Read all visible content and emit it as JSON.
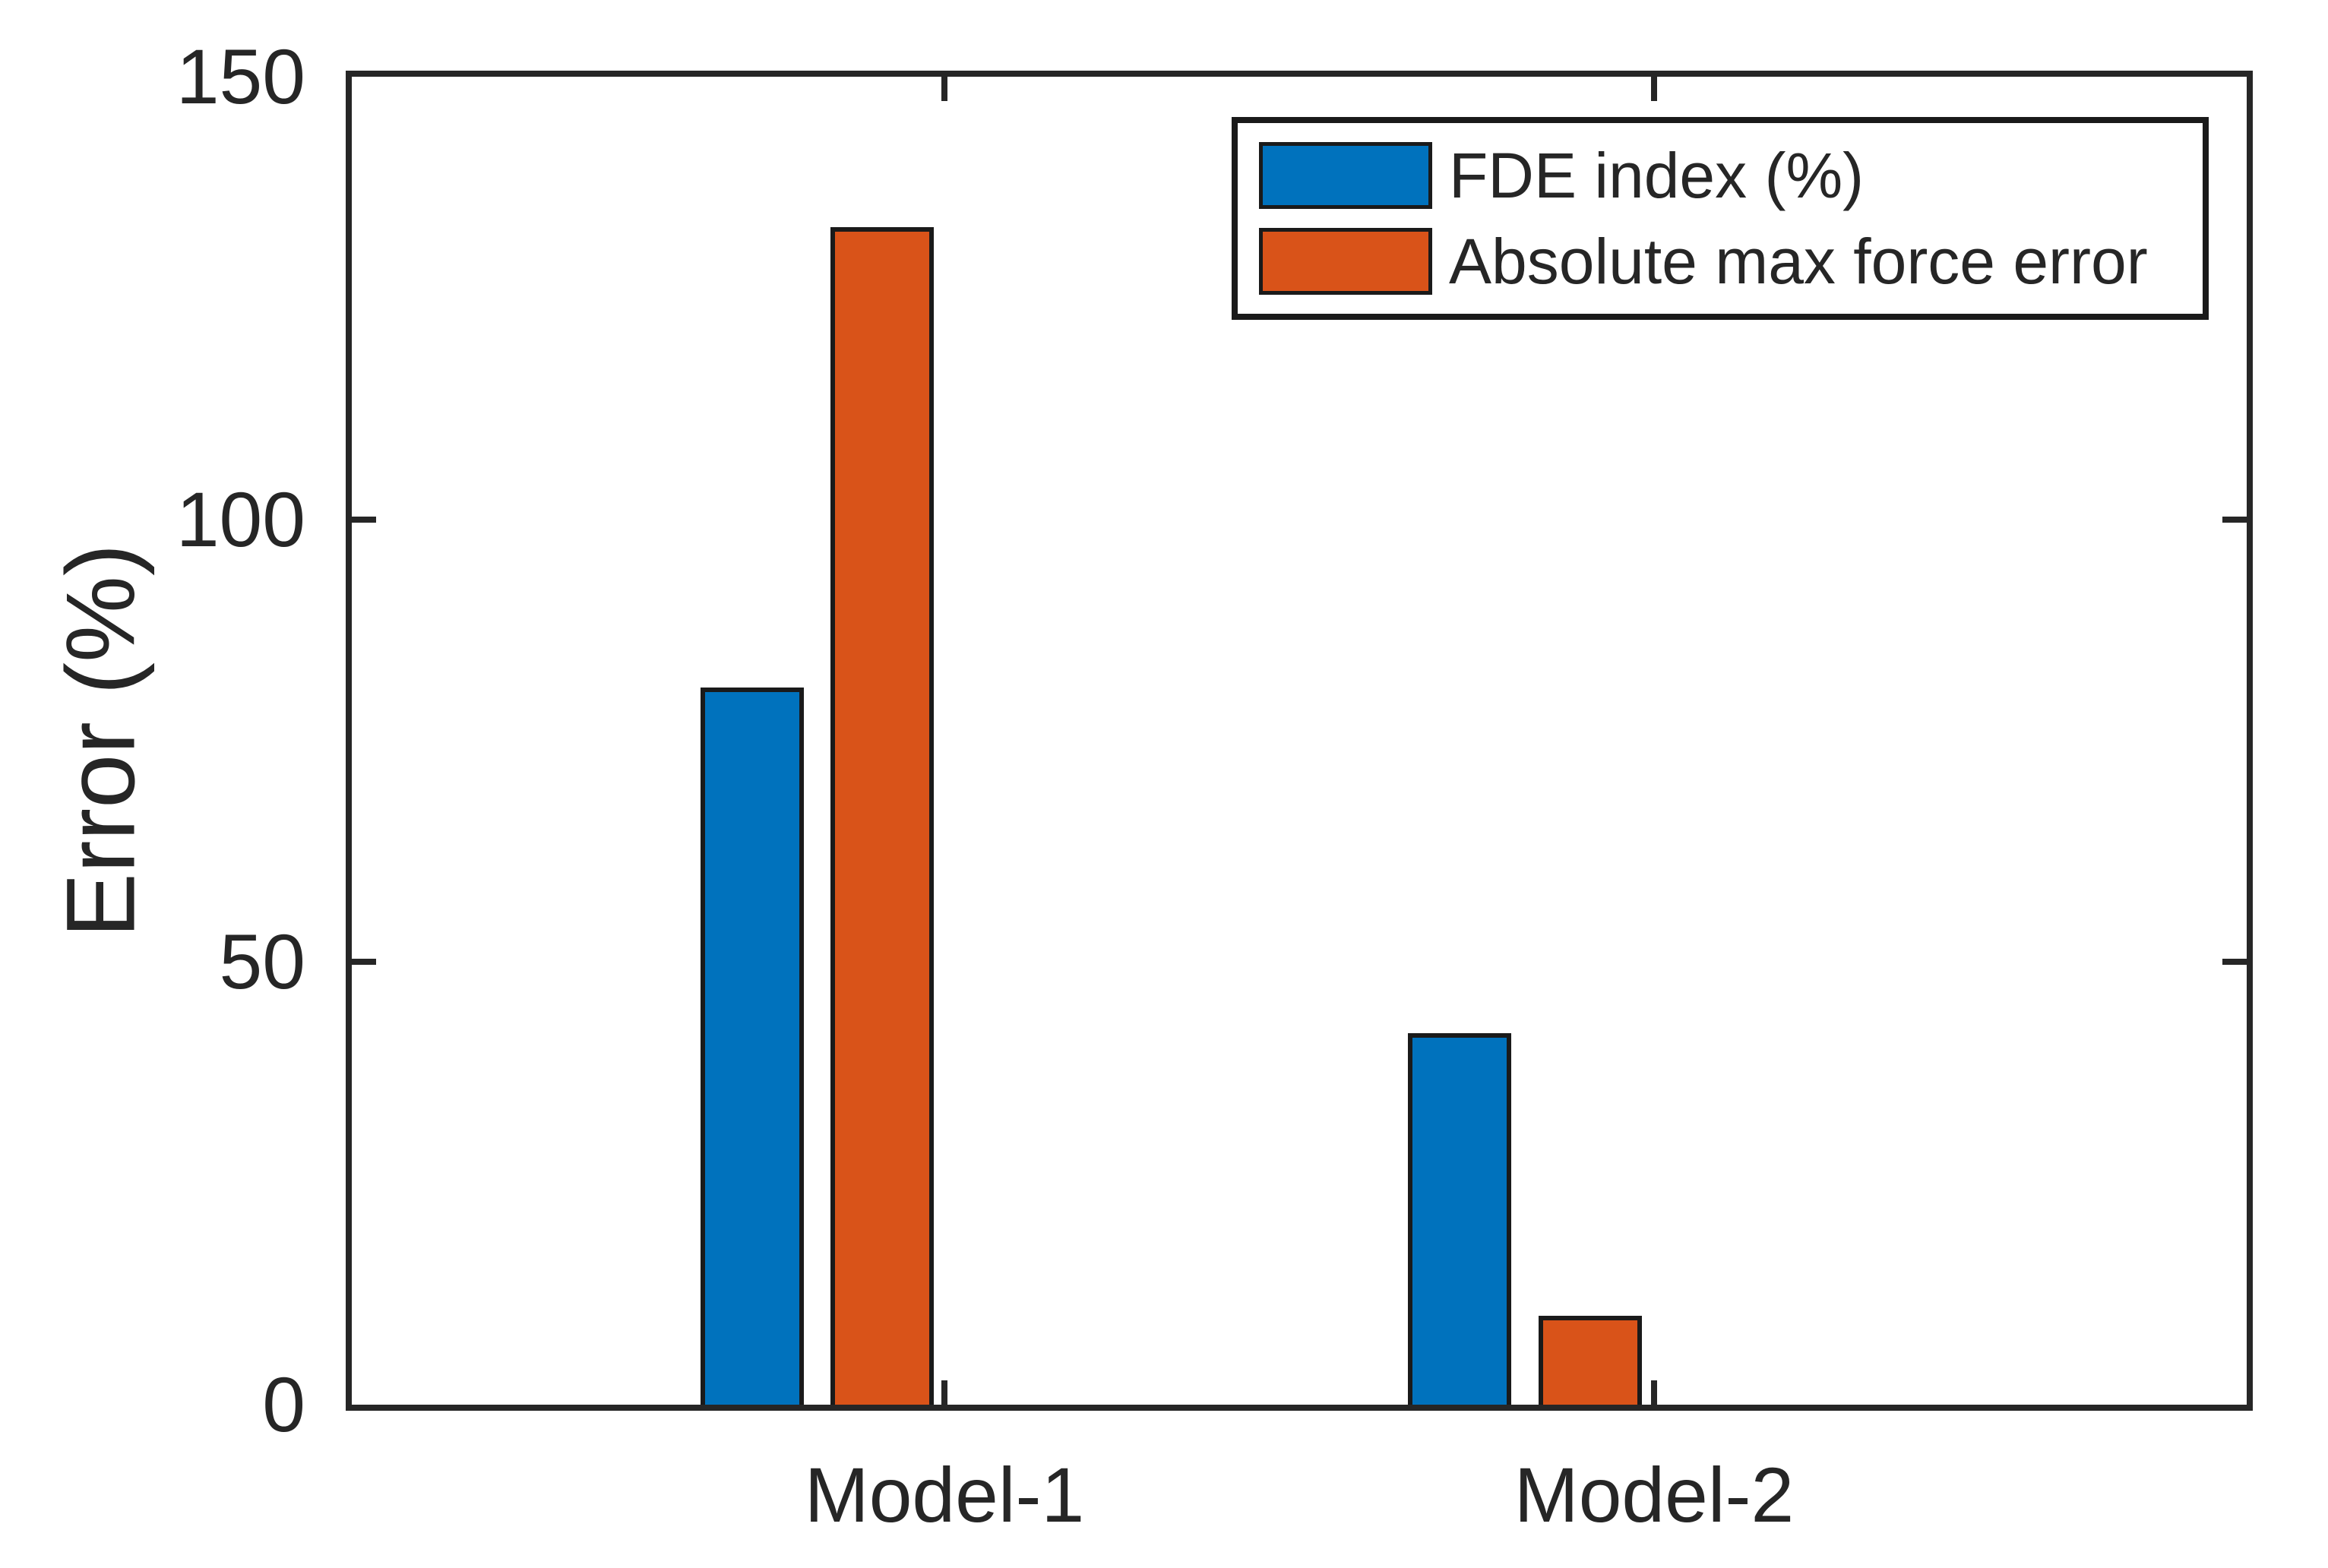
{
  "figure": {
    "background": "#ffffff",
    "axes_color": "#262626",
    "bar_edge_color": "#1a1a1a"
  },
  "chart_data": {
    "type": "bar",
    "categories": [
      "Model-1",
      "Model-2"
    ],
    "series": [
      {
        "name": "FDE index (%)",
        "color": "#0072BD",
        "values": [
          81,
          42
        ]
      },
      {
        "name": "Absolute max force error",
        "color": "#D95319",
        "values": [
          133,
          10
        ]
      }
    ],
    "title": "",
    "xlabel": "",
    "ylabel": "Error (%)",
    "ylim": [
      0,
      150
    ],
    "yticks": [
      0,
      50,
      100,
      150
    ],
    "grid": false,
    "legend_position": "northeast"
  }
}
